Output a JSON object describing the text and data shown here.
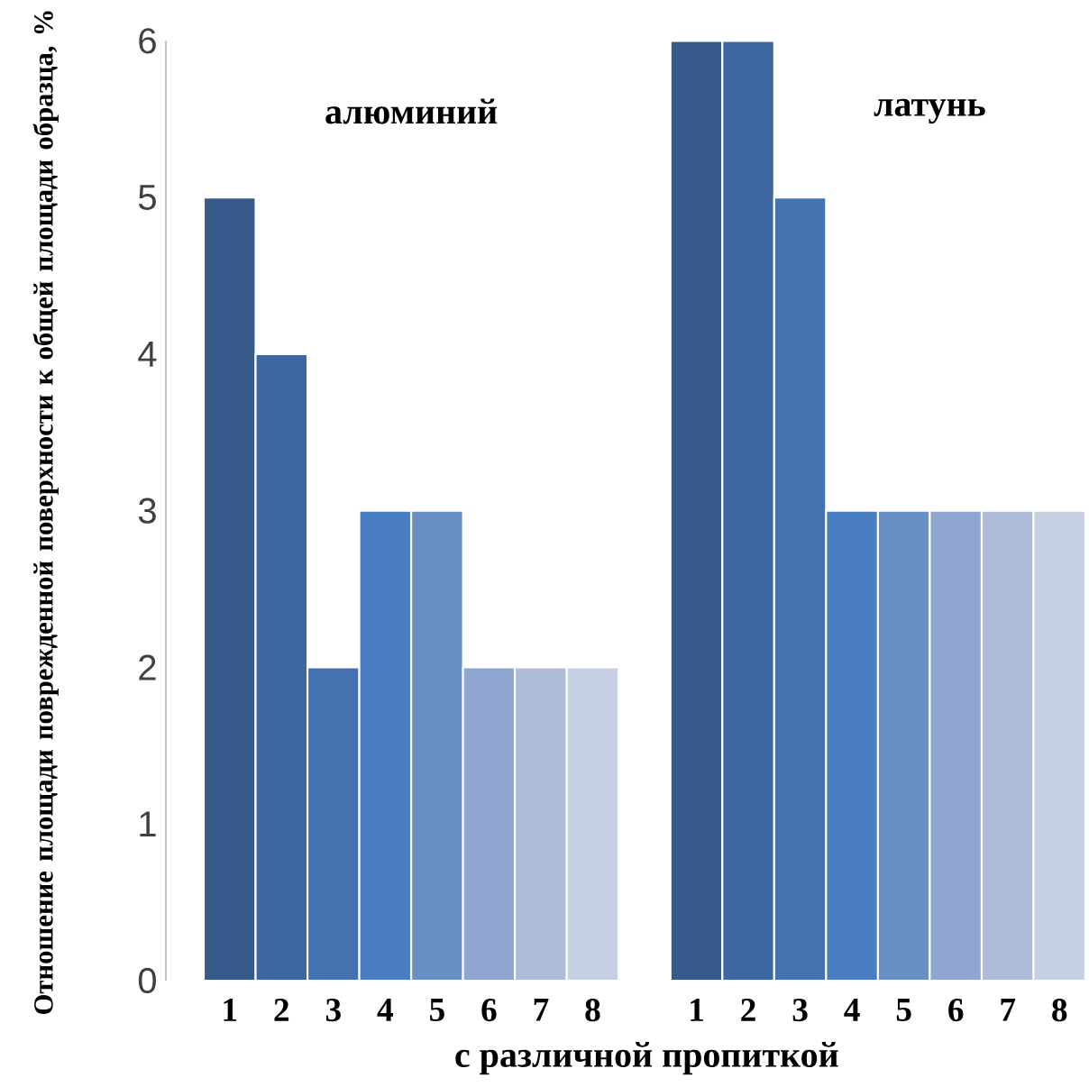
{
  "chart_data": {
    "type": "bar",
    "ylabel": "Отношение площади поврежденной поверхности к общей площади образца, %",
    "xlabel": "с различной пропиткой",
    "categories": [
      "1",
      "2",
      "3",
      "4",
      "5",
      "6",
      "7",
      "8",
      null,
      "1",
      "2",
      "3",
      "4",
      "5",
      "6",
      "7",
      "8"
    ],
    "values": [
      5,
      4,
      2,
      3,
      3,
      2,
      2,
      2,
      null,
      6,
      6,
      5,
      3,
      3,
      3,
      3,
      3
    ],
    "colors": [
      "#375a8a",
      "#3e66a0",
      "#4472b0",
      "#4a7cc0",
      "#6a8ec6",
      "#8fa6d0",
      "#aebcd9",
      "#c7d0e2",
      "#ffffff",
      "#375a8a",
      "#3e66a0",
      "#4472b0",
      "#4a7cc0",
      "#6a8ec6",
      "#8fa6d0",
      "#aebcd9",
      "#c7d0e2"
    ],
    "annotations": [
      "алюминий",
      "латунь"
    ],
    "ylim": [
      0,
      6
    ],
    "yticks": [
      0,
      1,
      2,
      3,
      4,
      5,
      6
    ]
  }
}
